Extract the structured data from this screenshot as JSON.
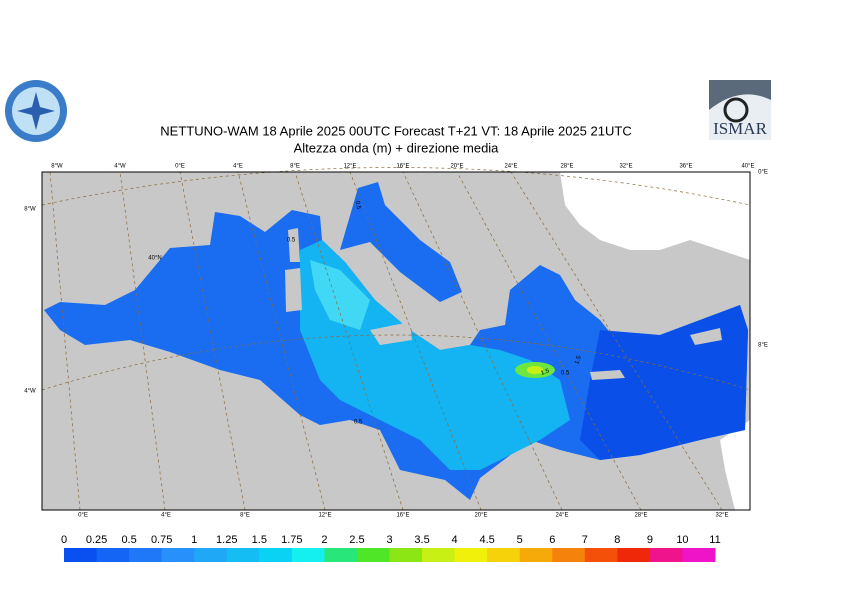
{
  "header": {
    "title": "NETTUNO-WAM  18   Aprile  2025 00UTC Forecast T+21 VT: 18   Aprile  2025 21UTC",
    "subtitle": "Altezza onda (m) + direzione media"
  },
  "logo": {
    "text": "ISMAR"
  },
  "map": {
    "top_labels": [
      "8°W",
      "4°W",
      "0°E",
      "4°E",
      "8°E",
      "12°E",
      "16°E",
      "20°E",
      "24°E",
      "28°E",
      "32°E",
      "36°E",
      "40°E"
    ],
    "bottom_labels": [
      "0°E",
      "4°E",
      "8°E",
      "12°E",
      "16°E",
      "20°E",
      "24°E",
      "28°E",
      "32°E"
    ],
    "left_labels": [
      "8°W",
      "4°W"
    ],
    "right_labels": [
      "0°E",
      "8°E"
    ],
    "inner_labels": [
      "40°N"
    ],
    "contour_labels": [
      "0.5",
      "0.5",
      "0.5",
      "1.5",
      "1.5",
      "0.5"
    ]
  },
  "colorbar": {
    "labels": [
      "0",
      "0.25",
      "0.5",
      "0.75",
      "1",
      "1.25",
      "1.5",
      "1.75",
      "2",
      "2.5",
      "3",
      "3.5",
      "4",
      "4.5",
      "5",
      "6",
      "7",
      "8",
      "9",
      "10",
      "11"
    ],
    "colors": [
      "#0a50f0",
      "#1464f5",
      "#1e78f8",
      "#2890fa",
      "#1ea8f5",
      "#14bef5",
      "#0ad2f5",
      "#14f0f0",
      "#28e67a",
      "#50e628",
      "#8ce614",
      "#c8f014",
      "#f0f00a",
      "#f5d20a",
      "#f5aa0a",
      "#f5820a",
      "#f5500a",
      "#f0280a",
      "#f0148c",
      "#f014c8"
    ]
  }
}
